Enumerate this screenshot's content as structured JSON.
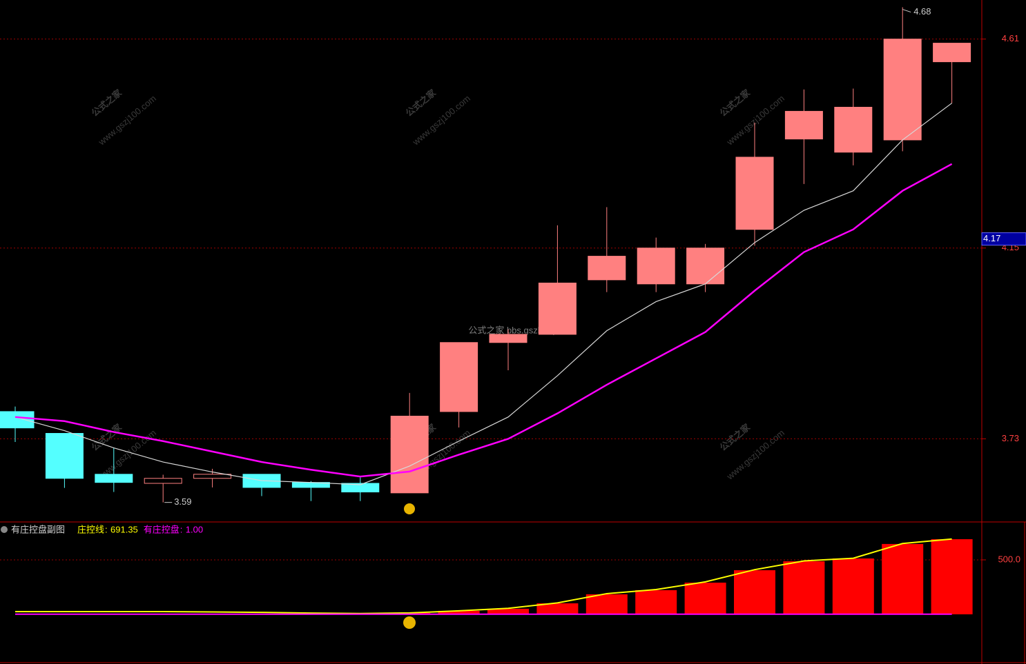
{
  "chart_data": [
    {
      "type": "candlestick",
      "open": [
        3.79,
        3.742,
        3.652,
        3.632,
        3.643,
        3.652,
        3.634,
        3.632,
        3.611,
        3.79,
        3.942,
        3.96,
        4.08,
        4.071,
        4.071,
        4.191,
        4.39,
        4.361,
        4.388,
        4.56
      ],
      "high": [
        3.801,
        3.742,
        3.71,
        3.651,
        3.664,
        3.652,
        3.637,
        3.645,
        3.831,
        3.942,
        3.971,
        4.2,
        4.24,
        4.173,
        4.159,
        4.426,
        4.499,
        4.501,
        4.68,
        4.601
      ],
      "low": [
        3.723,
        3.622,
        3.613,
        3.59,
        3.623,
        3.604,
        3.593,
        3.593,
        3.611,
        3.755,
        3.881,
        3.96,
        4.053,
        4.053,
        4.053,
        4.155,
        4.291,
        4.332,
        4.363,
        4.469
      ],
      "close": [
        3.754,
        3.643,
        3.634,
        3.643,
        3.652,
        3.623,
        3.623,
        3.613,
        3.78,
        3.942,
        3.96,
        4.073,
        4.132,
        4.15,
        4.15,
        4.35,
        4.451,
        4.46,
        4.61,
        4.601
      ],
      "up_color": "#ff8080",
      "down_color": "#54ffff",
      "lines": [
        {
          "color": "#d8d8d8",
          "values": [
            3.778,
            3.748,
            3.71,
            3.679,
            3.657,
            3.638,
            3.634,
            3.629,
            3.67,
            3.725,
            3.778,
            3.869,
            3.968,
            4.032,
            4.071,
            4.162,
            4.233,
            4.276,
            4.388,
            4.469
          ]
        },
        {
          "color": "#ff00ff",
          "values": [
            3.778,
            3.769,
            3.745,
            3.725,
            3.702,
            3.679,
            3.662,
            3.647,
            3.658,
            3.695,
            3.73,
            3.786,
            3.849,
            3.907,
            3.965,
            4.056,
            4.141,
            4.191,
            4.276,
            4.335
          ]
        }
      ],
      "ylim": [
        3.547,
        4.696
      ],
      "yticks": [
        3.73,
        4.15,
        4.61
      ],
      "grid": true,
      "high_label": 4.68,
      "low_label": 3.59,
      "marker_price": 4.17
    },
    {
      "type": "bar-line",
      "title": "有庄控盘副图",
      "bars": {
        "color": "#ff0000",
        "values": [
          0,
          0,
          0,
          0,
          0,
          0,
          0,
          0,
          13,
          32,
          51,
          101,
          184,
          222,
          291,
          405,
          487,
          513,
          646,
          690
        ]
      },
      "series": [
        {
          "name": "庄控线",
          "color": "#ffff00",
          "values": [
            25,
            25,
            25,
            25,
            22,
            18,
            12,
            8,
            13,
            32,
            55,
            105,
            190,
            228,
            298,
            410,
            490,
            515,
            650,
            691.35
          ]
        },
        {
          "name": "有庄控盘",
          "color": "#ff00ff",
          "values": [
            1,
            1,
            1,
            1,
            1,
            1,
            1,
            1,
            1,
            1,
            1,
            1,
            1,
            1,
            1,
            1,
            1,
            1,
            1,
            1
          ],
          "value_labels": [
            "1.00",
            "1.00",
            "1.00",
            "1.00",
            "1.00",
            "1.00",
            "1.00",
            "1.00",
            "1.00",
            "1.00",
            "1.00",
            "1.00",
            "1.00",
            "1.00",
            "1.00",
            "1.00",
            "1.00",
            "1.00",
            "1.00",
            "1.00"
          ]
        }
      ],
      "ylim": [
        -456,
        848
      ],
      "yticks": [
        {
          "value": 500,
          "label": "500.0"
        }
      ],
      "grid": true
    }
  ],
  "watermark": {
    "main": "公式之家 bbs.gszb.top",
    "brand": "公式之家",
    "site": "www.gszj100.com"
  }
}
